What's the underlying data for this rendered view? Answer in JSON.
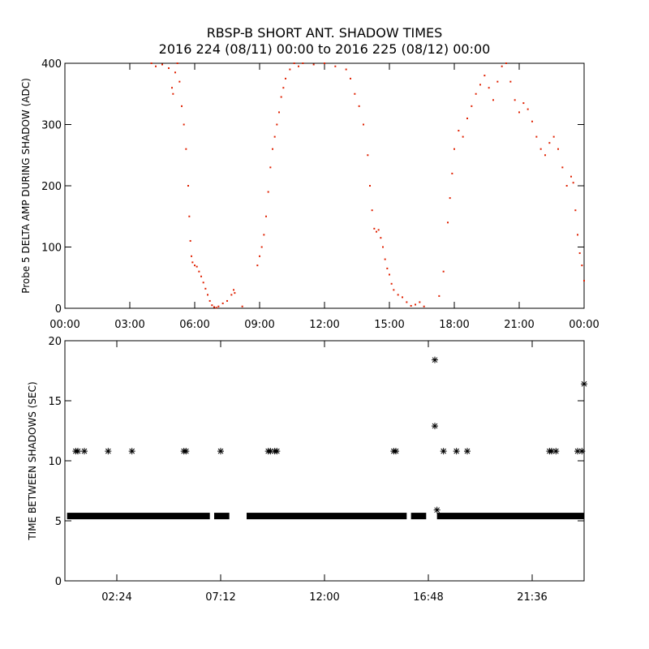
{
  "title": {
    "line1": "RBSP-B SHORT ANT. SHADOW TIMES",
    "line2": "2016 224 (08/11) 00:00 to 2016 225 (08/12) 00:00"
  },
  "colors": {
    "top_series": "#e02000",
    "bottom_series": "#000000",
    "axes": "#000000"
  },
  "chart_data": [
    {
      "type": "scatter",
      "ylabel": "Probe 5 DELTA AMP DURING SHADOW (ADC)",
      "xlabel": "",
      "xlim_hours": [
        0,
        24
      ],
      "ylim": [
        0,
        400
      ],
      "x_tick_labels": [
        "00:00",
        "03:00",
        "06:00",
        "09:00",
        "12:00",
        "15:00",
        "18:00",
        "21:00",
        "00:00"
      ],
      "y_tick_labels": [
        "0",
        "100",
        "200",
        "300",
        "400"
      ],
      "series": [
        {
          "points_hours_value": [
            [
              4.0,
              400
            ],
            [
              4.2,
              395
            ],
            [
              4.5,
              398
            ],
            [
              4.8,
              392
            ],
            [
              4.95,
              360
            ],
            [
              5.0,
              350
            ],
            [
              5.1,
              385
            ],
            [
              5.2,
              400
            ],
            [
              5.3,
              370
            ],
            [
              5.4,
              330
            ],
            [
              5.5,
              300
            ],
            [
              5.6,
              260
            ],
            [
              5.7,
              200
            ],
            [
              5.75,
              150
            ],
            [
              5.8,
              110
            ],
            [
              5.85,
              85
            ],
            [
              5.9,
              75
            ],
            [
              6.0,
              70
            ],
            [
              6.1,
              68
            ],
            [
              6.2,
              60
            ],
            [
              6.3,
              52
            ],
            [
              6.4,
              42
            ],
            [
              6.5,
              32
            ],
            [
              6.6,
              22
            ],
            [
              6.7,
              12
            ],
            [
              6.8,
              5
            ],
            [
              6.9,
              2
            ],
            [
              7.0,
              1
            ],
            [
              7.1,
              3
            ],
            [
              7.3,
              8
            ],
            [
              7.5,
              12
            ],
            [
              7.7,
              22
            ],
            [
              7.8,
              30
            ],
            [
              7.85,
              25
            ],
            [
              8.2,
              3
            ],
            [
              8.9,
              70
            ],
            [
              9.0,
              85
            ],
            [
              9.1,
              100
            ],
            [
              9.2,
              120
            ],
            [
              9.3,
              150
            ],
            [
              9.4,
              190
            ],
            [
              9.5,
              230
            ],
            [
              9.6,
              260
            ],
            [
              9.7,
              280
            ],
            [
              9.8,
              300
            ],
            [
              9.9,
              320
            ],
            [
              10.0,
              345
            ],
            [
              10.1,
              360
            ],
            [
              10.2,
              375
            ],
            [
              10.4,
              390
            ],
            [
              10.6,
              400
            ],
            [
              10.8,
              395
            ],
            [
              11.0,
              400
            ],
            [
              11.5,
              398
            ],
            [
              12.0,
              400
            ],
            [
              12.5,
              395
            ],
            [
              13.0,
              390
            ],
            [
              13.2,
              375
            ],
            [
              13.4,
              350
            ],
            [
              13.6,
              330
            ],
            [
              13.8,
              300
            ],
            [
              14.0,
              250
            ],
            [
              14.1,
              200
            ],
            [
              14.2,
              160
            ],
            [
              14.3,
              130
            ],
            [
              14.4,
              125
            ],
            [
              14.5,
              128
            ],
            [
              14.6,
              115
            ],
            [
              14.7,
              100
            ],
            [
              14.8,
              80
            ],
            [
              14.9,
              65
            ],
            [
              15.0,
              55
            ],
            [
              15.1,
              40
            ],
            [
              15.2,
              30
            ],
            [
              15.4,
              22
            ],
            [
              15.6,
              18
            ],
            [
              15.8,
              10
            ],
            [
              16.0,
              4
            ],
            [
              16.2,
              6
            ],
            [
              16.4,
              10
            ],
            [
              16.6,
              3
            ],
            [
              17.3,
              20
            ],
            [
              17.5,
              60
            ],
            [
              17.7,
              140
            ],
            [
              17.8,
              180
            ],
            [
              17.9,
              220
            ],
            [
              18.0,
              260
            ],
            [
              18.2,
              290
            ],
            [
              18.4,
              280
            ],
            [
              18.6,
              310
            ],
            [
              18.8,
              330
            ],
            [
              19.0,
              350
            ],
            [
              19.2,
              365
            ],
            [
              19.4,
              380
            ],
            [
              19.6,
              360
            ],
            [
              19.8,
              340
            ],
            [
              20.0,
              370
            ],
            [
              20.2,
              395
            ],
            [
              20.4,
              400
            ],
            [
              20.6,
              370
            ],
            [
              20.8,
              340
            ],
            [
              21.0,
              320
            ],
            [
              21.2,
              335
            ],
            [
              21.4,
              325
            ],
            [
              21.6,
              305
            ],
            [
              21.8,
              280
            ],
            [
              22.0,
              260
            ],
            [
              22.2,
              250
            ],
            [
              22.4,
              270
            ],
            [
              22.6,
              280
            ],
            [
              22.8,
              260
            ],
            [
              23.0,
              230
            ],
            [
              23.2,
              200
            ],
            [
              23.4,
              215
            ],
            [
              23.5,
              205
            ],
            [
              23.6,
              160
            ],
            [
              23.7,
              120
            ],
            [
              23.8,
              90
            ],
            [
              23.9,
              70
            ],
            [
              24.0,
              45
            ]
          ]
        }
      ]
    },
    {
      "type": "scatter",
      "ylabel": "TIME BETWEEN SHADOWS (SEC)",
      "xlabel": "",
      "xlim_hours": [
        0,
        24
      ],
      "ylim": [
        0,
        20
      ],
      "x_tick_labels": [
        "02:24",
        "07:12",
        "12:00",
        "16:48",
        "21:36"
      ],
      "x_tick_hours": [
        2.4,
        7.2,
        12.0,
        16.8,
        21.6
      ],
      "y_tick_labels": [
        "0",
        "5",
        "10",
        "15",
        "20"
      ],
      "series": [
        {
          "baseline_value": 5.4,
          "baseline_ranges_hours": [
            [
              0.1,
              6.7
            ],
            [
              6.9,
              7.6
            ],
            [
              8.4,
              15.8
            ],
            [
              16.0,
              16.7
            ],
            [
              17.2,
              24.0
            ]
          ],
          "points_hours_value": [
            [
              0.5,
              10.8
            ],
            [
              0.6,
              10.8
            ],
            [
              0.9,
              10.8
            ],
            [
              2.0,
              10.8
            ],
            [
              3.1,
              10.8
            ],
            [
              5.5,
              10.8
            ],
            [
              5.6,
              10.8
            ],
            [
              7.2,
              10.8
            ],
            [
              9.4,
              10.8
            ],
            [
              9.5,
              10.8
            ],
            [
              9.7,
              10.8
            ],
            [
              9.8,
              10.8
            ],
            [
              15.2,
              10.8
            ],
            [
              15.3,
              10.8
            ],
            [
              17.1,
              18.4
            ],
            [
              17.1,
              12.9
            ],
            [
              17.2,
              5.9
            ],
            [
              17.5,
              10.8
            ],
            [
              18.1,
              10.8
            ],
            [
              18.6,
              10.8
            ],
            [
              22.4,
              10.8
            ],
            [
              22.5,
              10.8
            ],
            [
              22.7,
              10.8
            ],
            [
              23.7,
              10.8
            ],
            [
              23.9,
              10.8
            ],
            [
              24.0,
              16.4
            ]
          ]
        }
      ]
    }
  ]
}
